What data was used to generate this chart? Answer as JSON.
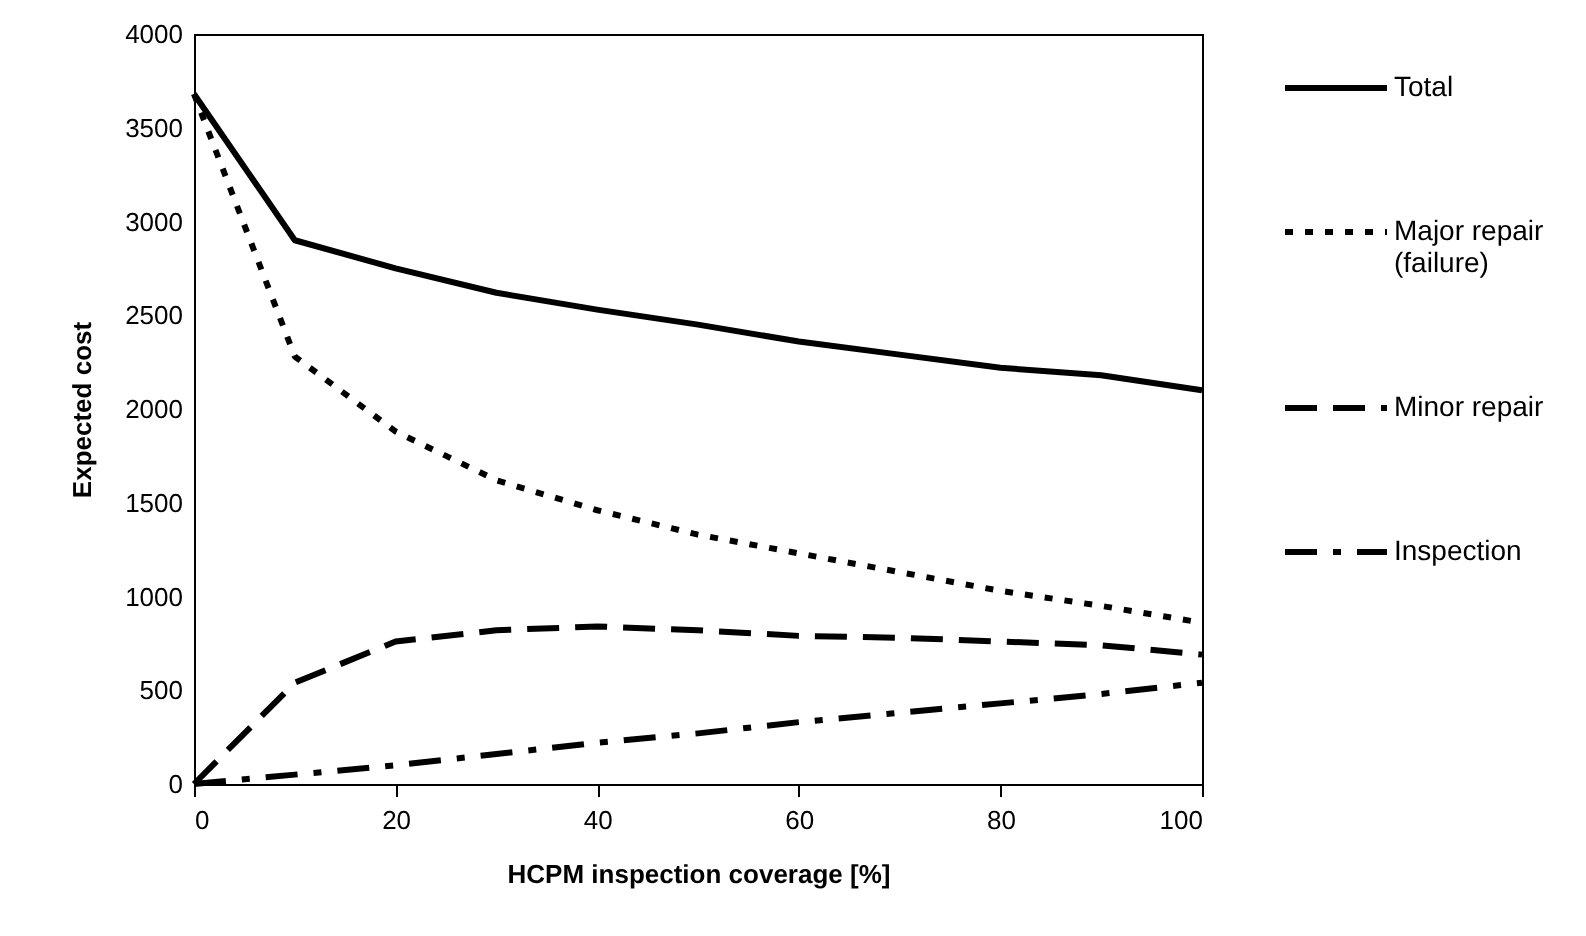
{
  "chart_data": {
    "type": "line",
    "xlabel": "HCPM inspection coverage [%]",
    "ylabel": "Expected cost",
    "x": [
      0,
      10,
      20,
      30,
      40,
      50,
      60,
      70,
      80,
      90,
      100
    ],
    "xlim": [
      0,
      100
    ],
    "xticks": [
      0,
      20,
      40,
      60,
      80,
      100
    ],
    "ylim": [
      0,
      4000
    ],
    "yticks": [
      0,
      500,
      1000,
      1500,
      2000,
      2500,
      3000,
      3500,
      4000
    ],
    "grid": false,
    "legend": "right",
    "marker": "none",
    "series": [
      {
        "name": "Total",
        "color": "#000000",
        "line_style": "solid",
        "values": [
          3680,
          2900,
          2750,
          2620,
          2530,
          2450,
          2360,
          2290,
          2220,
          2180,
          2100
        ]
      },
      {
        "name": "Major repair (failure)",
        "color": "#000000",
        "line_style": "dotted",
        "values": [
          3680,
          2280,
          1880,
          1620,
          1460,
          1330,
          1230,
          1130,
          1030,
          950,
          860
        ]
      },
      {
        "name": "Minor repair",
        "color": "#000000",
        "line_style": "dashed",
        "values": [
          0,
          540,
          760,
          820,
          840,
          820,
          790,
          780,
          760,
          740,
          690
        ]
      },
      {
        "name": "Inspection",
        "color": "#000000",
        "line_style": "dashdot",
        "values": [
          0,
          50,
          100,
          160,
          220,
          270,
          330,
          380,
          430,
          480,
          540
        ]
      }
    ]
  }
}
